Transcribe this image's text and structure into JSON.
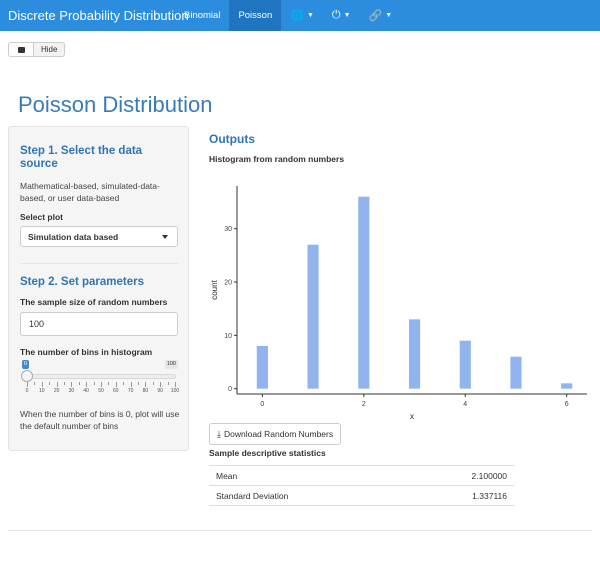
{
  "navbar": {
    "brand": "Discrete Probability Distribution",
    "tabs": [
      {
        "label": "Binomial",
        "active": false
      },
      {
        "label": "Poisson",
        "active": true
      }
    ],
    "icon_menus": [
      "globe-icon",
      "power-icon",
      "link-icon"
    ]
  },
  "toggle": {
    "hide_label": "Hide"
  },
  "page_title": "Poisson Distribution",
  "sidebar": {
    "step1_title": "Step 1. Select the data source",
    "step1_desc": "Mathematical-based, simulated-data-based, or user data-based",
    "select_plot_label": "Select plot",
    "select_plot_value": "Simulation data based",
    "step2_title": "Step 2. Set parameters",
    "sample_size_label": "The sample size of random numbers",
    "sample_size_value": "100",
    "bins_label": "The number of bins in histogram",
    "bins_slider": {
      "min": 0,
      "max": 100,
      "value": 0,
      "min_label": "0",
      "max_label": "100",
      "tick_labels": [
        "0",
        "10",
        "20",
        "30",
        "40",
        "50",
        "60",
        "70",
        "80",
        "90",
        "100"
      ]
    },
    "bins_note": "When the number of bins is 0, plot will use the default number of bins"
  },
  "main": {
    "outputs_heading": "Outputs",
    "histogram_title": "Histogram from random numbers",
    "download_label": "Download Random Numbers",
    "stats_title": "Sample descriptive statistics",
    "stats": [
      {
        "label": "Mean",
        "value": "2.100000"
      },
      {
        "label": "Standard Deviation",
        "value": "1.337116"
      }
    ]
  },
  "chart_data": {
    "type": "bar",
    "x": [
      0,
      1,
      2,
      3,
      4,
      5,
      6
    ],
    "values": [
      8,
      27,
      36,
      13,
      9,
      6,
      1
    ],
    "xlabel": "x",
    "ylabel": "count",
    "x_ticks": [
      "0",
      "2",
      "4",
      "6"
    ],
    "y_ticks": [
      "0",
      "10",
      "20",
      "30"
    ],
    "xlim": [
      -0.5,
      6.4
    ],
    "ylim": [
      -1,
      38
    ],
    "bar_color": "#91b4ee",
    "grid": false
  },
  "colors": {
    "navbar": "#2c8ddf",
    "navbar_active": "#1f75c0",
    "heading": "#3a7bb7",
    "bar": "#91b4ee"
  }
}
